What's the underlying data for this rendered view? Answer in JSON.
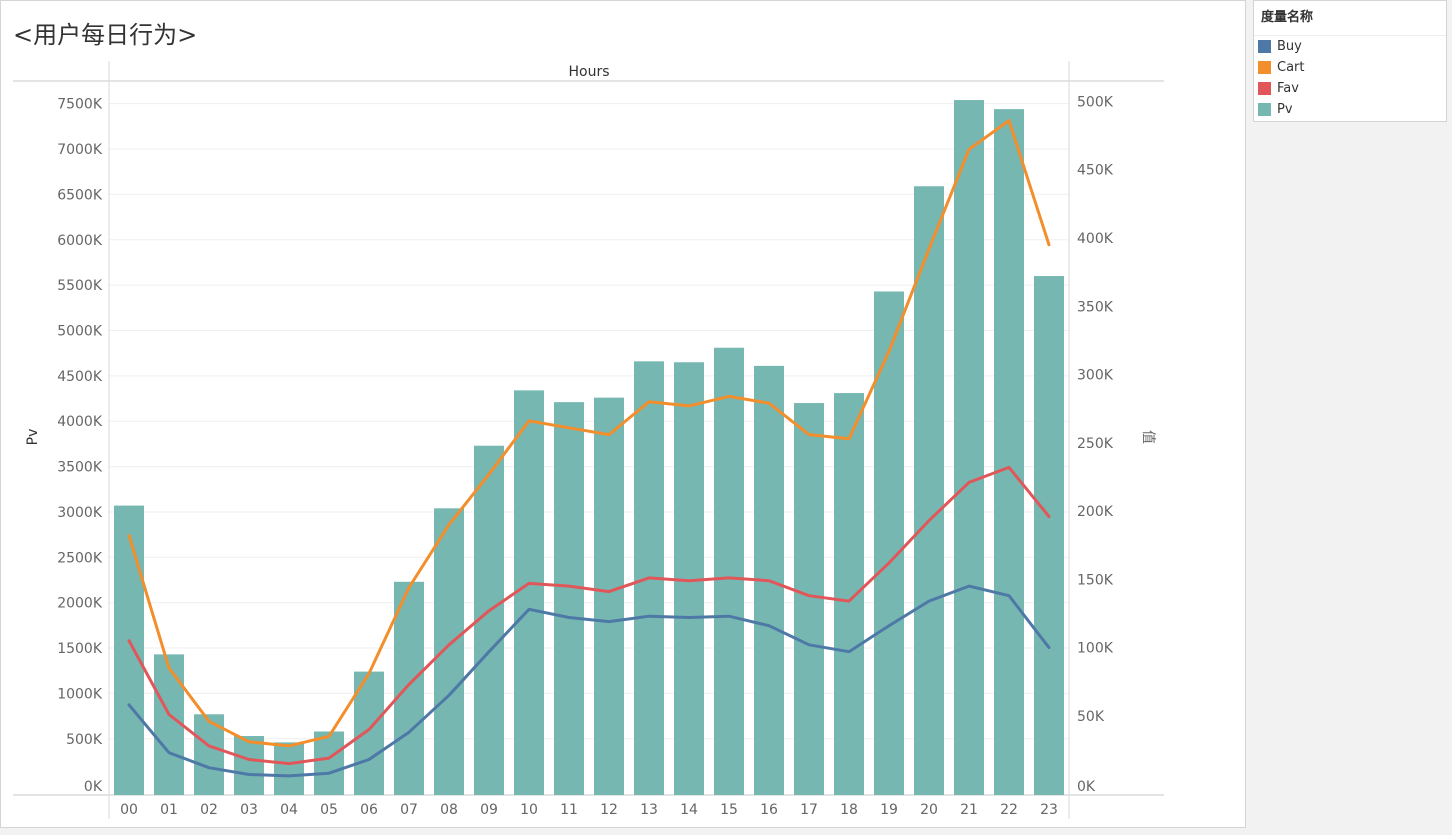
{
  "title": "<用户每日行为>",
  "legend": {
    "title": "度量名称",
    "items": [
      {
        "label": "Buy",
        "color": "#4e79a7"
      },
      {
        "label": "Cart",
        "color": "#f28e2b"
      },
      {
        "label": "Fav",
        "color": "#e15759"
      },
      {
        "label": "Pv",
        "color": "#76b7b2"
      }
    ]
  },
  "chart_data": {
    "type": "bar",
    "xlabel": "Hours",
    "ylabel": "Pv",
    "y2label": "值",
    "categories": [
      "00",
      "01",
      "02",
      "03",
      "04",
      "05",
      "06",
      "07",
      "08",
      "09",
      "10",
      "11",
      "12",
      "13",
      "14",
      "15",
      "16",
      "17",
      "18",
      "19",
      "20",
      "21",
      "22",
      "23"
    ],
    "ylim": [
      -120,
      7750
    ],
    "y2lim": [
      -8000,
      515000
    ],
    "yticks": [
      0,
      500,
      1000,
      1500,
      2000,
      2500,
      3000,
      3500,
      4000,
      4500,
      5000,
      5500,
      6000,
      6500,
      7000,
      7500
    ],
    "ytick_labels": [
      "0K",
      "500K",
      "1000K",
      "1500K",
      "2000K",
      "2500K",
      "3000K",
      "3500K",
      "4000K",
      "4500K",
      "5000K",
      "5500K",
      "6000K",
      "6500K",
      "7000K",
      "7500K"
    ],
    "y2ticks": [
      0,
      50000,
      100000,
      150000,
      200000,
      250000,
      300000,
      350000,
      400000,
      450000,
      500000
    ],
    "y2tick_labels": [
      "0K",
      "50K",
      "100K",
      "150K",
      "200K",
      "250K",
      "300K",
      "350K",
      "400K",
      "450K",
      "500K"
    ],
    "bar_series": {
      "name": "Pv",
      "color": "#76b7b2",
      "unit": "K",
      "values": [
        3070,
        1430,
        770,
        530,
        460,
        580,
        1240,
        2230,
        3040,
        3730,
        4340,
        4210,
        4260,
        4660,
        4650,
        4810,
        4610,
        4200,
        4310,
        5430,
        6590,
        7540,
        7440,
        5600
      ]
    },
    "line_series": [
      {
        "name": "Cart",
        "color": "#f28e2b",
        "values": [
          182000,
          85000,
          46000,
          31000,
          28000,
          35000,
          81000,
          144000,
          190000,
          227000,
          266000,
          261000,
          256000,
          280000,
          277000,
          284000,
          279000,
          256000,
          253000,
          317000,
          392000,
          465000,
          486000,
          395000
        ]
      },
      {
        "name": "Fav",
        "color": "#e15759",
        "values": [
          105000,
          51000,
          28000,
          18000,
          15000,
          19000,
          40000,
          73000,
          102000,
          127000,
          147000,
          145000,
          141000,
          151000,
          149000,
          151000,
          149000,
          138000,
          134000,
          162000,
          193000,
          221000,
          232000,
          196000
        ]
      },
      {
        "name": "Buy",
        "color": "#4e79a7",
        "values": [
          58000,
          23000,
          12000,
          7000,
          6000,
          8000,
          18000,
          38000,
          65000,
          97000,
          128000,
          122000,
          119000,
          123000,
          122000,
          123000,
          116000,
          102000,
          97000,
          116000,
          134000,
          145000,
          138000,
          100000
        ]
      }
    ]
  }
}
